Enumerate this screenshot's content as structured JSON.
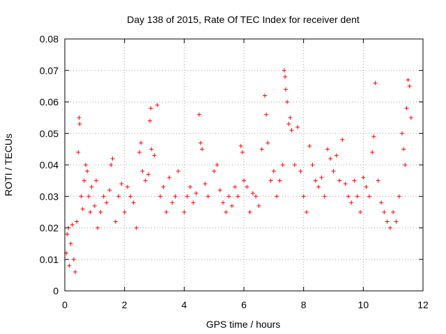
{
  "chart_data": {
    "type": "scatter",
    "title": "Day 138 of 2015, Rate Of TEC Index for receiver dent",
    "xlabel": "GPS time / hours",
    "ylabel": "ROTI / TECUs",
    "xlim": [
      0,
      12
    ],
    "ylim": [
      0,
      0.08
    ],
    "x_ticks": [
      0,
      2,
      4,
      6,
      8,
      10,
      12
    ],
    "y_ticks": [
      0,
      0.01,
      0.02,
      0.03,
      0.04,
      0.05,
      0.06,
      0.07,
      0.08
    ],
    "x_tick_labels": [
      "0",
      "2",
      "4",
      "6",
      "8",
      "10",
      "12"
    ],
    "y_tick_labels": [
      "0",
      "0.01",
      "0.02",
      "0.03",
      "0.04",
      "0.05",
      "0.06",
      "0.07",
      "0.08"
    ],
    "grid": true,
    "marker": "plus",
    "color": "#ff0000",
    "series": [
      {
        "name": "ROTI",
        "points": [
          [
            0.05,
            0.012
          ],
          [
            0.08,
            0.018
          ],
          [
            0.12,
            0.02
          ],
          [
            0.15,
            0.008
          ],
          [
            0.2,
            0.015
          ],
          [
            0.25,
            0.021
          ],
          [
            0.3,
            0.01
          ],
          [
            0.35,
            0.006
          ],
          [
            0.4,
            0.022
          ],
          [
            0.45,
            0.044
          ],
          [
            0.48,
            0.055
          ],
          [
            0.5,
            0.053
          ],
          [
            0.55,
            0.03
          ],
          [
            0.6,
            0.026
          ],
          [
            0.65,
            0.035
          ],
          [
            0.7,
            0.04
          ],
          [
            0.75,
            0.038
          ],
          [
            0.8,
            0.03
          ],
          [
            0.85,
            0.025
          ],
          [
            0.9,
            0.033
          ],
          [
            1.0,
            0.027
          ],
          [
            1.05,
            0.035
          ],
          [
            1.1,
            0.02
          ],
          [
            1.2,
            0.025
          ],
          [
            1.3,
            0.03
          ],
          [
            1.4,
            0.028
          ],
          [
            1.5,
            0.032
          ],
          [
            1.55,
            0.04
          ],
          [
            1.6,
            0.042
          ],
          [
            1.7,
            0.022
          ],
          [
            1.8,
            0.03
          ],
          [
            1.9,
            0.034
          ],
          [
            2.0,
            0.025
          ],
          [
            2.1,
            0.033
          ],
          [
            2.2,
            0.03
          ],
          [
            2.3,
            0.028
          ],
          [
            2.4,
            0.02
          ],
          [
            2.5,
            0.044
          ],
          [
            2.55,
            0.047
          ],
          [
            2.6,
            0.038
          ],
          [
            2.7,
            0.035
          ],
          [
            2.8,
            0.037
          ],
          [
            2.85,
            0.054
          ],
          [
            2.88,
            0.058
          ],
          [
            2.9,
            0.045
          ],
          [
            3.0,
            0.043
          ],
          [
            3.1,
            0.059
          ],
          [
            3.2,
            0.03
          ],
          [
            3.3,
            0.033
          ],
          [
            3.4,
            0.025
          ],
          [
            3.5,
            0.036
          ],
          [
            3.6,
            0.028
          ],
          [
            3.7,
            0.03
          ],
          [
            3.8,
            0.038
          ],
          [
            4.0,
            0.025
          ],
          [
            4.1,
            0.03
          ],
          [
            4.2,
            0.033
          ],
          [
            4.3,
            0.028
          ],
          [
            4.4,
            0.031
          ],
          [
            4.5,
            0.056
          ],
          [
            4.55,
            0.047
          ],
          [
            4.6,
            0.045
          ],
          [
            4.7,
            0.034
          ],
          [
            4.8,
            0.03
          ],
          [
            5.0,
            0.038
          ],
          [
            5.1,
            0.04
          ],
          [
            5.2,
            0.032
          ],
          [
            5.3,
            0.028
          ],
          [
            5.4,
            0.025
          ],
          [
            5.5,
            0.03
          ],
          [
            5.6,
            0.027
          ],
          [
            5.7,
            0.033
          ],
          [
            5.8,
            0.03
          ],
          [
            5.9,
            0.046
          ],
          [
            5.95,
            0.044
          ],
          [
            6.0,
            0.035
          ],
          [
            6.1,
            0.033
          ],
          [
            6.2,
            0.025
          ],
          [
            6.3,
            0.031
          ],
          [
            6.4,
            0.03
          ],
          [
            6.5,
            0.027
          ],
          [
            6.6,
            0.045
          ],
          [
            6.7,
            0.062
          ],
          [
            6.75,
            0.056
          ],
          [
            6.8,
            0.047
          ],
          [
            6.9,
            0.035
          ],
          [
            7.0,
            0.038
          ],
          [
            7.1,
            0.03
          ],
          [
            7.2,
            0.035
          ],
          [
            7.3,
            0.04
          ],
          [
            7.35,
            0.07
          ],
          [
            7.38,
            0.068
          ],
          [
            7.4,
            0.064
          ],
          [
            7.45,
            0.06
          ],
          [
            7.5,
            0.053
          ],
          [
            7.55,
            0.055
          ],
          [
            7.6,
            0.051
          ],
          [
            7.7,
            0.04
          ],
          [
            7.8,
            0.052
          ],
          [
            7.9,
            0.038
          ],
          [
            8.0,
            0.03
          ],
          [
            8.1,
            0.025
          ],
          [
            8.2,
            0.046
          ],
          [
            8.3,
            0.04
          ],
          [
            8.4,
            0.035
          ],
          [
            8.5,
            0.033
          ],
          [
            8.6,
            0.036
          ],
          [
            8.7,
            0.03
          ],
          [
            8.8,
            0.045
          ],
          [
            8.9,
            0.042
          ],
          [
            9.0,
            0.038
          ],
          [
            9.1,
            0.043
          ],
          [
            9.2,
            0.035
          ],
          [
            9.3,
            0.048
          ],
          [
            9.4,
            0.034
          ],
          [
            9.5,
            0.03
          ],
          [
            9.6,
            0.028
          ],
          [
            9.7,
            0.035
          ],
          [
            9.8,
            0.03
          ],
          [
            9.9,
            0.025
          ],
          [
            10.0,
            0.036
          ],
          [
            10.1,
            0.033
          ],
          [
            10.2,
            0.03
          ],
          [
            10.3,
            0.044
          ],
          [
            10.35,
            0.049
          ],
          [
            10.4,
            0.066
          ],
          [
            10.5,
            0.035
          ],
          [
            10.6,
            0.028
          ],
          [
            10.7,
            0.025
          ],
          [
            10.8,
            0.022
          ],
          [
            10.9,
            0.02
          ],
          [
            11.0,
            0.025
          ],
          [
            11.1,
            0.022
          ],
          [
            11.2,
            0.03
          ],
          [
            11.3,
            0.05
          ],
          [
            11.35,
            0.045
          ],
          [
            11.4,
            0.04
          ],
          [
            11.45,
            0.058
          ],
          [
            11.5,
            0.067
          ],
          [
            11.55,
            0.065
          ],
          [
            11.6,
            0.055
          ]
        ]
      }
    ]
  }
}
